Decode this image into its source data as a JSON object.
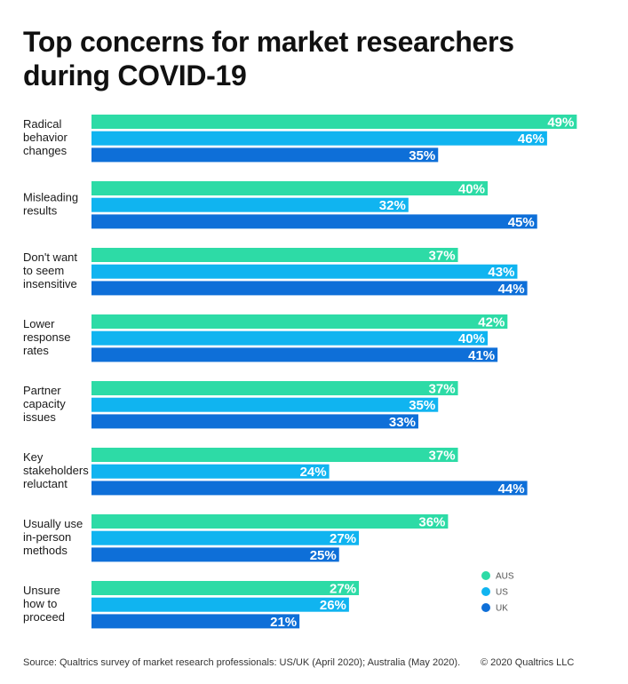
{
  "header": {
    "title_lines": [
      "Top concerns for market researchers",
      "during COVID-19"
    ]
  },
  "footer": {
    "source": "Source: Qualtrics survey of market research professionals: US/UK (April 2020); Australia (May 2020).",
    "copyright": "© 2020 Qualtrics LLC"
  },
  "chart_data": {
    "type": "bar",
    "orientation": "horizontal",
    "title": "Top concerns for market researchers during COVID-19",
    "xlim": [
      0,
      50
    ],
    "grid": false,
    "legend_position": "bottom-right",
    "categories": [
      [
        "Radical",
        "behavior",
        "changes"
      ],
      [
        "Misleading",
        "results"
      ],
      [
        "Don't want",
        "to seem",
        "insensitive"
      ],
      [
        "Lower",
        "response",
        "rates"
      ],
      [
        "Partner",
        "capacity",
        "issues"
      ],
      [
        "Key",
        "stakeholders",
        "reluctant"
      ],
      [
        "Usually use",
        "in-person",
        "methods"
      ],
      [
        "Unsure",
        "how to",
        "proceed"
      ]
    ],
    "series": [
      {
        "name": "AUS",
        "color": "#2ddba6",
        "values": [
          49,
          40,
          37,
          42,
          37,
          37,
          36,
          27
        ],
        "labels": [
          "49%",
          "40%",
          "37%",
          "42%",
          "37%",
          "37%",
          "36%",
          "27%"
        ]
      },
      {
        "name": "US",
        "color": "#10b4f0",
        "values": [
          46,
          32,
          43,
          40,
          35,
          24,
          27,
          26
        ],
        "labels": [
          "46%",
          "32%",
          "43%",
          "40%",
          "35%",
          "24%",
          "27%",
          "26%"
        ]
      },
      {
        "name": "UK",
        "color": "#0e6fd8",
        "values": [
          35,
          45,
          44,
          41,
          33,
          44,
          25,
          21
        ],
        "labels": [
          "35%",
          "45%",
          "44%",
          "41%",
          "33%",
          "44%",
          "25%",
          "21%"
        ]
      }
    ]
  }
}
